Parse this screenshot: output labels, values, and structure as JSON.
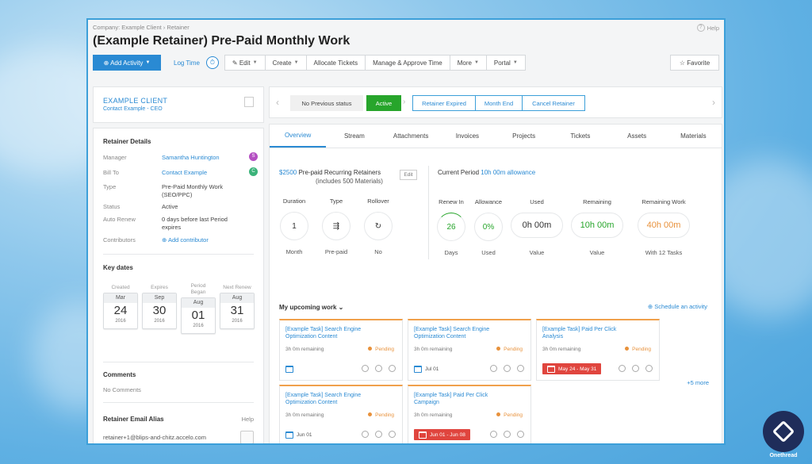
{
  "breadcrumb": "Company: Example Client  ›  Retainer",
  "help_label": "Help",
  "page_title": "(Example Retainer) Pre-Paid Monthly Work",
  "toolbar": {
    "add_activity": "⊕ Add Activity",
    "log_time": "Log Time",
    "timer": "⏱",
    "edit": "✎ Edit",
    "create": "Create",
    "allocate": "Allocate Tickets",
    "manage": "Manage & Approve Time",
    "more": "More",
    "portal": "Portal",
    "favorite": "☆ Favorite"
  },
  "client": {
    "name": "EXAMPLE CLIENT",
    "contact": "Contact Example - CEO"
  },
  "details": {
    "title": "Retainer Details",
    "manager_k": "Manager",
    "manager_v": "Samantha Huntington",
    "manager_badge": "S",
    "billto_k": "Bill To",
    "billto_v": "Contact Example",
    "billto_badge": "C",
    "type_k": "Type",
    "type_v": "Pre-Paid Monthly Work (SEO/PPC)",
    "status_k": "Status",
    "status_v": "Active",
    "autorenew_k": "Auto Renew",
    "autorenew_v": "0 days before last Period expires",
    "contrib_k": "Contributors",
    "contrib_v": "⊕ Add contributor"
  },
  "key_dates": {
    "title": "Key dates",
    "items": [
      {
        "label": "Created",
        "month": "Mar",
        "day": "24",
        "year": "2016"
      },
      {
        "label": "Expires",
        "month": "Sep",
        "day": "30",
        "year": "2016"
      },
      {
        "label": "Period Began",
        "month": "Aug",
        "day": "01",
        "year": "2016"
      },
      {
        "label": "Next Renew",
        "month": "Aug",
        "day": "31",
        "year": "2016"
      }
    ]
  },
  "comments": {
    "title": "Comments",
    "value": "No Comments"
  },
  "alias": {
    "title": "Retainer Email Alias",
    "help": "Help",
    "email": "retainer+1@blips-and-chitz.accelo.com"
  },
  "status_bar": {
    "prev": "No Previous status",
    "active": "Active",
    "buttons": [
      "Retainer Expired",
      "Month End",
      "Cancel Retainer"
    ]
  },
  "tabs": [
    "Overview",
    "Stream",
    "Attachments",
    "Invoices",
    "Projects",
    "Tickets",
    "Assets",
    "Materials"
  ],
  "summary": {
    "price": "$2500",
    "title_rest": " Pre-paid Recurring Retainers",
    "includes": "(includes 500 Materials)",
    "edit": "Edit",
    "current_period": "Current Period ",
    "allowance_link": "10h 00m allowance"
  },
  "left_metrics": [
    {
      "label": "Duration",
      "value": "1",
      "sub": "Month"
    },
    {
      "label": "Type",
      "value": "⇶",
      "sub": "Pre-paid"
    },
    {
      "label": "Rollover",
      "value": "↻",
      "sub": "No"
    }
  ],
  "right_metrics": [
    {
      "label": "Renew In",
      "value": "26",
      "sub": "Days",
      "color": "#27a52b"
    },
    {
      "label": "Allowance",
      "value": "0%",
      "sub": "Used",
      "color": "#27a52b"
    },
    {
      "label": "Used",
      "value": "0h 00m",
      "sub": "Value",
      "color": "#333333"
    },
    {
      "label": "Remaining",
      "value": "10h 00m",
      "sub": "Value",
      "color": "#27a52b"
    },
    {
      "label": "Remaining Work",
      "value": "40h 00m",
      "sub": "With 12 Tasks",
      "color": "#e8913b"
    }
  ],
  "upcoming": {
    "title": "My upcoming work ⌄",
    "schedule": "⊕ Schedule an activity",
    "more": "+5 more"
  },
  "tasks": [
    {
      "title": "[Example Task] Search Engine Optimization Content",
      "remaining": "3h 0m remaining",
      "status": "Pending",
      "date": "",
      "overdue": false
    },
    {
      "title": "[Example Task] Search Engine Optimization Content",
      "remaining": "3h 0m remaining",
      "status": "Pending",
      "date": "Jul 01",
      "overdue": false
    },
    {
      "title": "[Example Task] Paid Per Click Analysis",
      "remaining": "3h 0m remaining",
      "status": "Pending",
      "date": "May 24 - May 31",
      "overdue": true
    },
    {
      "title": "[Example Task] Search Engine Optimization Content",
      "remaining": "3h 0m remaining",
      "status": "Pending",
      "date": "Jun 01",
      "overdue": false
    },
    {
      "title": "[Example Task] Paid Per Click Campaign",
      "remaining": "3h 0m remaining",
      "status": "Pending",
      "date": "Jun 01 - Jun 08",
      "overdue": true
    }
  ],
  "brand": {
    "name": "Onethread"
  },
  "colors": {
    "accent": "#2a8ad3",
    "active": "#27a52b",
    "pending": "#e8913b",
    "overdue": "#e0453e"
  }
}
